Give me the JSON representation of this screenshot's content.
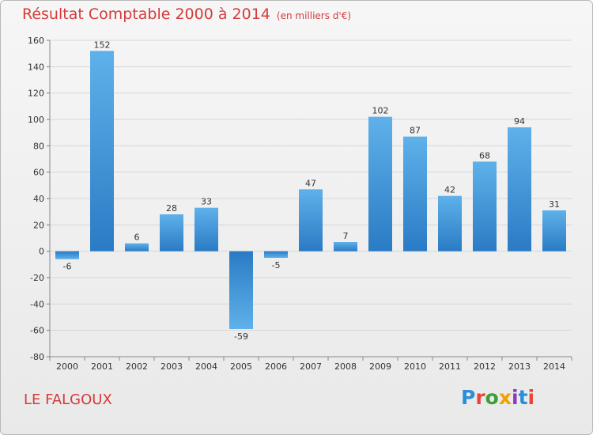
{
  "chart_data": {
    "type": "bar",
    "title": "Résultat Comptable 2000 à 2014",
    "subtitle": "(en milliers d'€)",
    "categories": [
      "2000",
      "2001",
      "2002",
      "2003",
      "2004",
      "2005",
      "2006",
      "2007",
      "2008",
      "2009",
      "2010",
      "2011",
      "2012",
      "2013",
      "2014"
    ],
    "values": [
      -6,
      152,
      6,
      28,
      33,
      -59,
      -5,
      47,
      7,
      102,
      87,
      42,
      68,
      94,
      31
    ],
    "ylim": [
      -80,
      160
    ],
    "yticks": [
      -80,
      -60,
      -40,
      -20,
      0,
      20,
      40,
      60,
      80,
      100,
      120,
      140,
      160
    ],
    "xlabel": "",
    "ylabel": "",
    "grid": "horizontal",
    "bar_color": "#3a8fd6"
  },
  "commune": "LE FALGOUX",
  "brand": [
    "P",
    "r",
    "o",
    "x",
    "i",
    "t",
    "i"
  ],
  "colors": {
    "title": "#d63a3a",
    "bar_light": "#5fb1ea",
    "bar_dark": "#2a7bc4"
  }
}
